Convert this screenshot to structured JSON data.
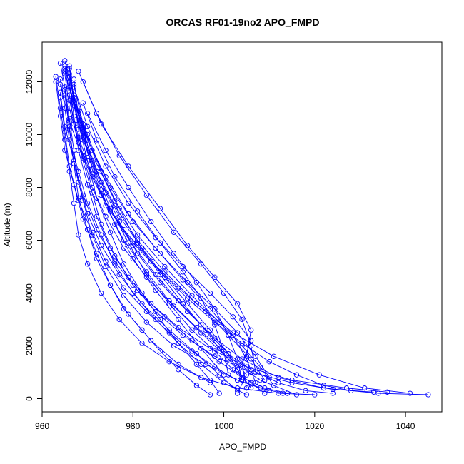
{
  "chart_data": {
    "type": "scatter",
    "title": "ORCAS RF01-19no2 APO_FMPD",
    "xlabel": "APO_FMPD",
    "ylabel": "Altitude (m)",
    "xlim": [
      960,
      1048
    ],
    "ylim": [
      -500,
      13500
    ],
    "x_ticks": [
      960,
      980,
      1000,
      1020,
      1040
    ],
    "y_ticks": [
      0,
      2000,
      4000,
      6000,
      8000,
      10000,
      12000
    ],
    "x_tick_labels": [
      "960",
      "980",
      "1000",
      "1020",
      "1040"
    ],
    "y_tick_labels": [
      "0",
      "2000",
      "4000",
      "6000",
      "8000",
      "10000",
      "12000"
    ],
    "grid": false,
    "legend": "none",
    "marker": "open-circle",
    "connected": true,
    "color": "#0000ff",
    "series": [
      {
        "x": [
          964,
          965,
          966,
          967,
          968,
          970,
          973,
          977,
          982,
          988,
          994,
          999,
          1003
        ],
        "y": [
          12700,
          11800,
          10600,
          9400,
          8200,
          7000,
          5800,
          4700,
          3600,
          2600,
          1700,
          900,
          300
        ]
      },
      {
        "x": [
          965,
          966,
          967,
          969,
          971,
          974,
          978,
          983,
          989,
          995,
          1001,
          1008,
          1016
        ],
        "y": [
          12500,
          11500,
          10400,
          9200,
          8000,
          6900,
          5700,
          4600,
          3500,
          2500,
          1500,
          700,
          150
        ]
      },
      {
        "x": [
          966,
          967,
          969,
          971,
          974,
          977,
          981,
          986,
          992,
          998,
          1004,
          1012,
          1022,
          1034,
          1045
        ],
        "y": [
          12300,
          11300,
          10200,
          9000,
          7800,
          6700,
          5500,
          4400,
          3300,
          2300,
          1500,
          800,
          400,
          200,
          150
        ]
      },
      {
        "x": [
          964,
          965,
          966,
          968,
          970,
          973,
          976,
          980,
          985,
          990,
          995,
          1000,
          1005
        ],
        "y": [
          12100,
          11000,
          9800,
          8600,
          7400,
          6200,
          5100,
          4000,
          3000,
          2100,
          1300,
          600,
          150
        ]
      },
      {
        "x": [
          965,
          967,
          970,
          974,
          979,
          985,
          991,
          997,
          1002,
          1005,
          1007
        ],
        "y": [
          12600,
          11200,
          9800,
          8400,
          7000,
          5700,
          4500,
          3400,
          2400,
          1500,
          600
        ]
      },
      {
        "x": [
          966,
          968,
          971,
          975,
          980,
          986,
          992,
          998,
          1003,
          1007,
          1010
        ],
        "y": [
          12200,
          10800,
          9400,
          8000,
          6700,
          5500,
          4400,
          3400,
          2500,
          1600,
          800
        ]
      },
      {
        "x": [
          964,
          966,
          969,
          973,
          978,
          984,
          990,
          996,
          1001,
          1006,
          1009
        ],
        "y": [
          11900,
          10500,
          9100,
          7700,
          6400,
          5200,
          4200,
          3300,
          2400,
          1500,
          700
        ]
      },
      {
        "x": [
          967,
          970,
          974,
          979,
          985,
          991,
          997,
          1002,
          1006,
          1004,
          1005
        ],
        "y": [
          11800,
          10300,
          8800,
          7400,
          6100,
          5000,
          4000,
          3100,
          2200,
          1300,
          400
        ]
      },
      {
        "x": [
          968,
          972,
          977,
          983,
          989,
          995,
          1000,
          1004,
          1006,
          1007
        ],
        "y": [
          12400,
          10800,
          9200,
          7700,
          6300,
          5100,
          4000,
          3000,
          2000,
          1000
        ]
      },
      {
        "x": [
          969,
          973,
          979,
          986,
          992,
          998,
          1003,
          1006,
          1005
        ],
        "y": [
          12000,
          10400,
          8800,
          7200,
          5800,
          4600,
          3600,
          2600,
          1600
        ]
      },
      {
        "x": [
          965,
          967,
          970,
          973,
          977,
          981,
          986,
          991,
          996,
          1001,
          1005,
          1003
        ],
        "y": [
          12800,
          11400,
          10000,
          8600,
          7200,
          5900,
          4700,
          3600,
          2600,
          1700,
          900,
          200
        ]
      },
      {
        "x": [
          966,
          967,
          968,
          970,
          972,
          975,
          979,
          984,
          990,
          997,
          1005,
          1015,
          1027,
          1036
        ],
        "y": [
          12000,
          10700,
          9400,
          8100,
          6900,
          5700,
          4600,
          3600,
          2700,
          1900,
          1200,
          700,
          400,
          250
        ]
      },
      {
        "x": [
          963,
          964,
          965,
          966,
          967,
          968,
          970,
          973,
          977,
          982,
          988,
          995,
          1003,
          1012,
          1020
        ],
        "y": [
          12200,
          11000,
          9800,
          8600,
          7400,
          6200,
          5100,
          4000,
          3000,
          2100,
          1400,
          800,
          400,
          200,
          150
        ]
      },
      {
        "x": [
          965,
          966,
          967,
          969,
          971,
          974,
          978,
          983,
          989,
          996,
          1003,
          1010
        ],
        "y": [
          11700,
          10300,
          8900,
          7500,
          6200,
          5000,
          3900,
          2900,
          2000,
          1300,
          700,
          300
        ]
      },
      {
        "x": [
          967,
          969,
          971,
          974,
          978,
          983,
          988,
          994,
          1000,
          1006,
          1012,
          1018,
          1024
        ],
        "y": [
          11500,
          10100,
          8700,
          7300,
          6000,
          4800,
          3700,
          2700,
          1800,
          1100,
          600,
          300,
          200
        ]
      },
      {
        "x": [
          966,
          968,
          971,
          975,
          980,
          985,
          990,
          995,
          999,
          1003,
          1006
        ],
        "y": [
          11300,
          9900,
          8500,
          7100,
          5800,
          4700,
          3700,
          2800,
          1900,
          1100,
          400
        ]
      },
      {
        "x": [
          964,
          965,
          967,
          969,
          972,
          976,
          981,
          987,
          993,
          999,
          1004,
          1009,
          1014
        ],
        "y": [
          11600,
          10300,
          9000,
          7700,
          6400,
          5200,
          4100,
          3100,
          2200,
          1400,
          800,
          400,
          200
        ]
      },
      {
        "x": [
          968,
          970,
          973,
          977,
          982,
          987,
          992,
          997,
          1001,
          1004
        ],
        "y": [
          11000,
          9600,
          8200,
          6900,
          5700,
          4600,
          3600,
          2600,
          1700,
          800
        ]
      },
      {
        "x": [
          965,
          966,
          968,
          971,
          975,
          980,
          986,
          992,
          998,
          1004,
          1010,
          1016,
          1022,
          1028
        ],
        "y": [
          12300,
          11000,
          9700,
          8400,
          7100,
          5900,
          4800,
          3800,
          2900,
          2100,
          1400,
          900,
          500,
          300
        ]
      },
      {
        "x": [
          967,
          968,
          970,
          973,
          976,
          980,
          985,
          990,
          995,
          1000
        ],
        "y": [
          12100,
          10700,
          9300,
          7900,
          6600,
          5300,
          4100,
          3000,
          1900,
          900
        ]
      },
      {
        "x": [
          966,
          967,
          969,
          972,
          976,
          981,
          987,
          994,
          1002,
          1011,
          1021,
          1031,
          1041
        ],
        "y": [
          12500,
          11200,
          9900,
          8600,
          7300,
          6000,
          4800,
          3600,
          2500,
          1600,
          900,
          400,
          200
        ]
      },
      {
        "x": [
          964,
          965,
          966,
          968,
          971,
          974,
          978,
          983,
          988,
          993,
          998,
          1003,
          1008,
          1013
        ],
        "y": [
          11400,
          10100,
          8800,
          7500,
          6300,
          5200,
          4200,
          3300,
          2500,
          1800,
          1200,
          700,
          400,
          200
        ]
      },
      {
        "x": [
          969,
          972,
          976,
          981,
          986,
          991,
          995,
          998,
          1000,
          1001
        ],
        "y": [
          11200,
          9800,
          8400,
          7100,
          5900,
          4800,
          3800,
          2800,
          1800,
          900
        ]
      },
      {
        "x": [
          965,
          967,
          969,
          972,
          975,
          979,
          983,
          988,
          993,
          998,
          1002,
          1006,
          1009
        ],
        "y": [
          12400,
          11100,
          9800,
          8500,
          7200,
          5900,
          4700,
          3600,
          2600,
          1800,
          1100,
          600,
          200
        ]
      },
      {
        "x": [
          966,
          968,
          970,
          972,
          975,
          978,
          982,
          986,
          990,
          994,
          997,
          999
        ],
        "y": [
          11800,
          10400,
          9000,
          7600,
          6300,
          5100,
          4000,
          3000,
          2100,
          1300,
          700,
          200
        ]
      },
      {
        "x": [
          963,
          964,
          965,
          967,
          969,
          972,
          975,
          979,
          984,
          990,
          997
        ],
        "y": [
          12000,
          10700,
          9400,
          8100,
          6800,
          5500,
          4300,
          3200,
          2200,
          1300,
          600
        ]
      },
      {
        "x": [
          970,
          974,
          979,
          984,
          989,
          994,
          998,
          1001,
          1003,
          1004
        ],
        "y": [
          10800,
          9400,
          8000,
          6700,
          5500,
          4400,
          3400,
          2400,
          1500,
          700
        ]
      },
      {
        "x": [
          966,
          967,
          968,
          969,
          971,
          973,
          976,
          980,
          985,
          991,
          998,
          1006,
          1015,
          1024,
          1033
        ],
        "y": [
          12600,
          11400,
          10200,
          9000,
          7800,
          6600,
          5400,
          4300,
          3300,
          2400,
          1600,
          1000,
          600,
          350,
          250
        ]
      },
      {
        "x": [
          967,
          969,
          972,
          976,
          981,
          987,
          993,
          999,
          1004,
          1008,
          1011
        ],
        "y": [
          11900,
          10400,
          8900,
          7500,
          6200,
          5000,
          3900,
          2900,
          2000,
          1200,
          500
        ]
      },
      {
        "x": [
          965,
          966,
          967,
          968,
          970,
          972,
          975,
          978,
          982,
          986,
          990,
          994,
          997
        ],
        "y": [
          11500,
          10200,
          8900,
          7600,
          6400,
          5300,
          4300,
          3400,
          2600,
          1800,
          1100,
          500,
          150
        ]
      }
    ]
  }
}
